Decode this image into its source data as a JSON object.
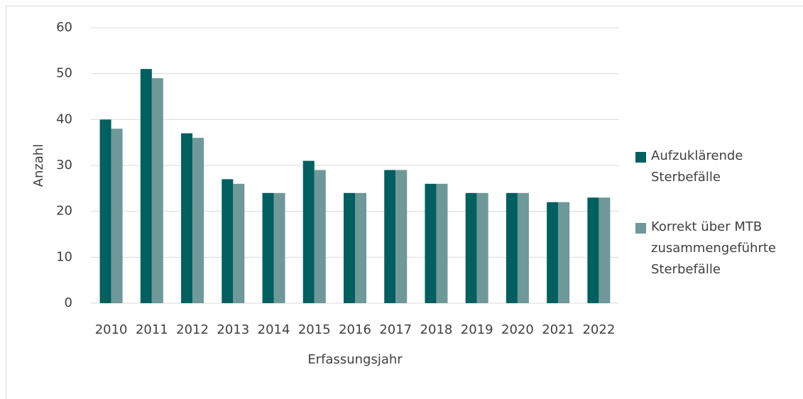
{
  "chart_data": {
    "type": "bar",
    "categories": [
      "2010",
      "2011",
      "2012",
      "2013",
      "2014",
      "2015",
      "2016",
      "2017",
      "2018",
      "2019",
      "2020",
      "2021",
      "2022"
    ],
    "series": [
      {
        "name": "Aufzuklärende Sterbefälle",
        "color": "#005f5f",
        "values": [
          40,
          51,
          37,
          27,
          24,
          31,
          24,
          29,
          26,
          24,
          24,
          22,
          23
        ]
      },
      {
        "name": "Korrekt über MTB zusammengeführte Sterbefälle",
        "color": "#6f9898",
        "values": [
          38,
          49,
          36,
          26,
          24,
          29,
          24,
          29,
          26,
          24,
          24,
          22,
          23
        ]
      }
    ],
    "xlabel": "Erfassungsjahr",
    "ylabel": "Anzahl",
    "ylim": [
      0,
      60
    ],
    "yticks": [
      0,
      10,
      20,
      30,
      40,
      50,
      60
    ],
    "grid": true,
    "legend": "right"
  }
}
